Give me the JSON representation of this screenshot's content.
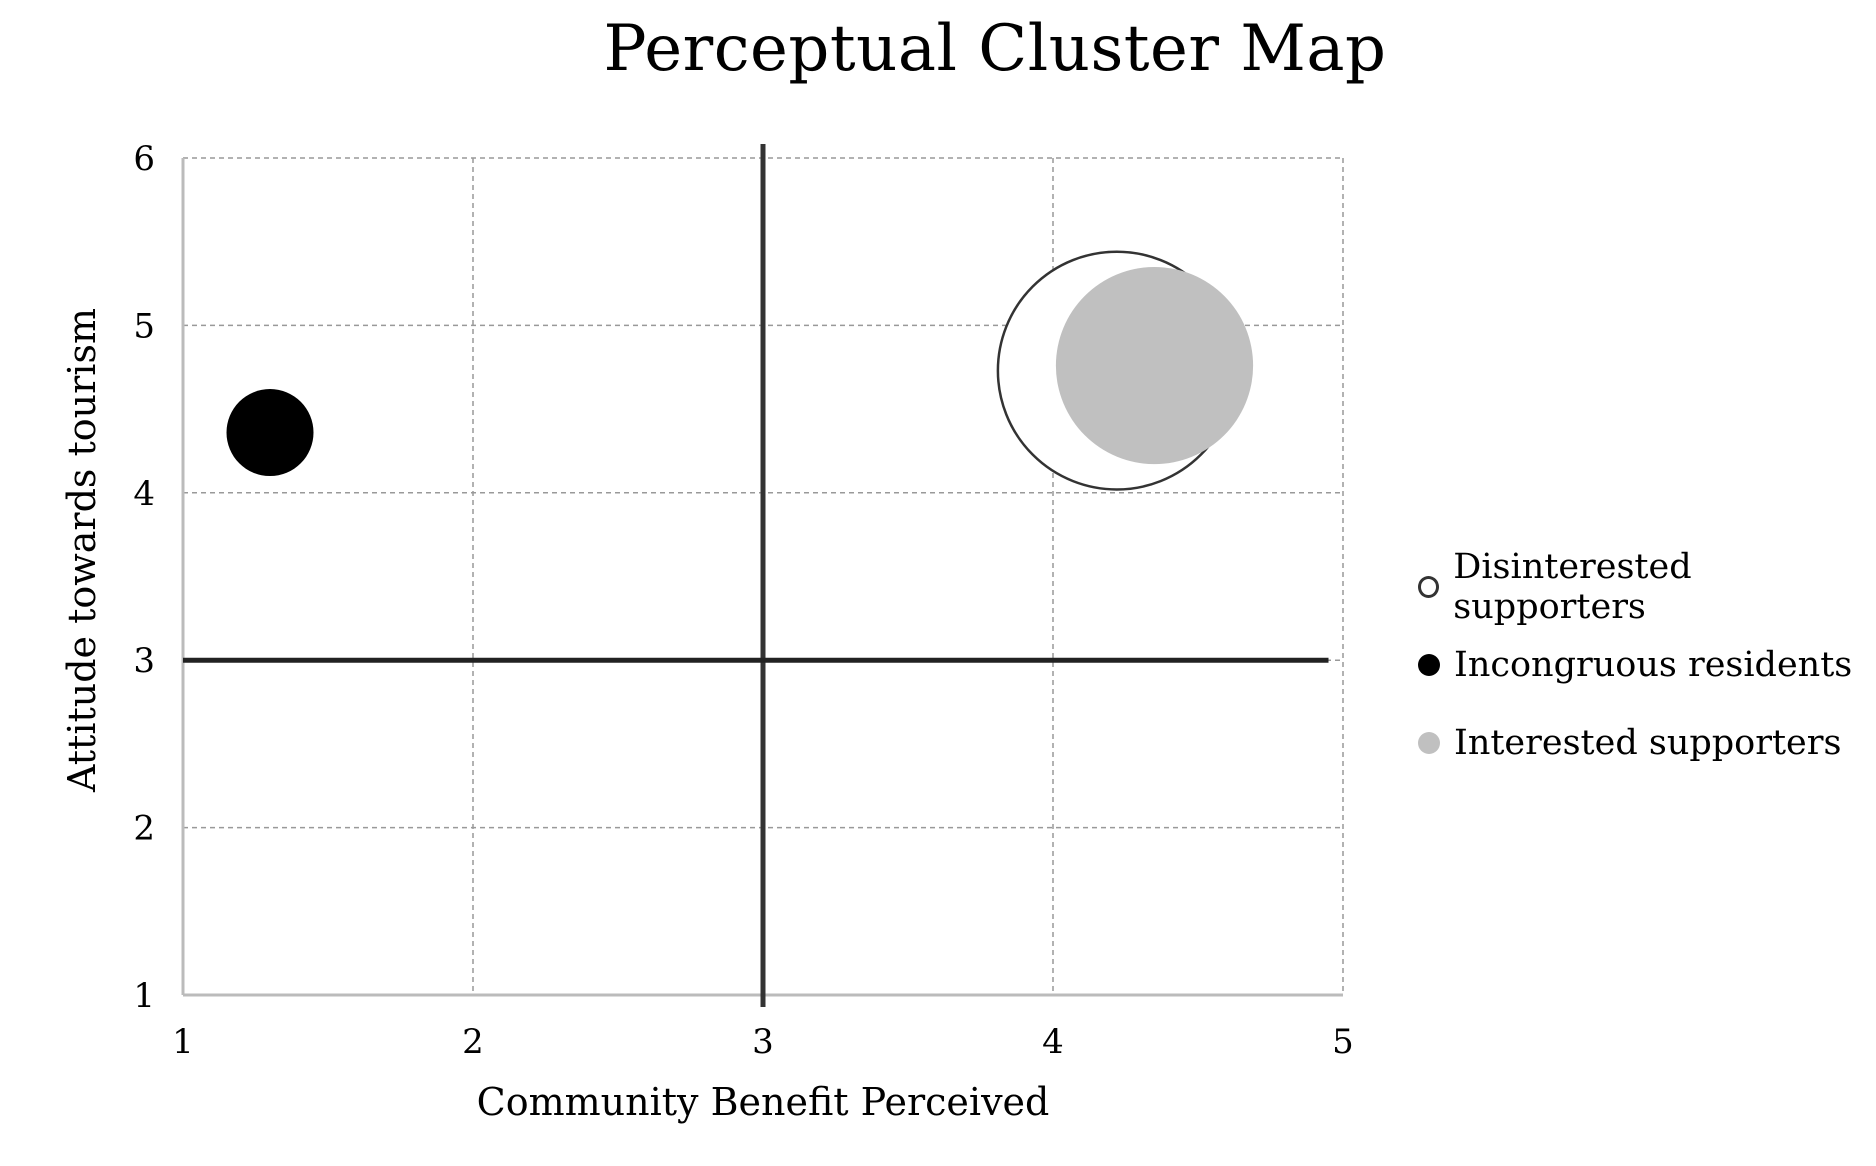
{
  "chart_data": {
    "type": "scatter",
    "title": "Perceptual Cluster Map",
    "xlabel": "Community Benefit Perceived",
    "ylabel": "Attitude towards tourism",
    "xlim": [
      1,
      5
    ],
    "ylim": [
      1,
      6
    ],
    "xticks": [
      "1",
      "2",
      "3",
      "4",
      "5"
    ],
    "yticks": [
      "1",
      "2",
      "3",
      "4",
      "5",
      "6"
    ],
    "grid": true,
    "reference_lines": {
      "x": 3,
      "y": 3
    },
    "legend_position": "right",
    "series": [
      {
        "name": "Disinterested supporters",
        "x": 4.22,
        "y": 4.73,
        "size": 0.41,
        "fill": "#ffffff",
        "stroke": "#333333"
      },
      {
        "name": "Incongruous residents",
        "x": 1.3,
        "y": 4.36,
        "size": 0.15,
        "fill": "#000000",
        "stroke": "#000000"
      },
      {
        "name": "Interested supporters",
        "x": 4.35,
        "y": 4.76,
        "size": 0.34,
        "fill": "#c0c0c0",
        "stroke": "#c0c0c0"
      }
    ]
  }
}
